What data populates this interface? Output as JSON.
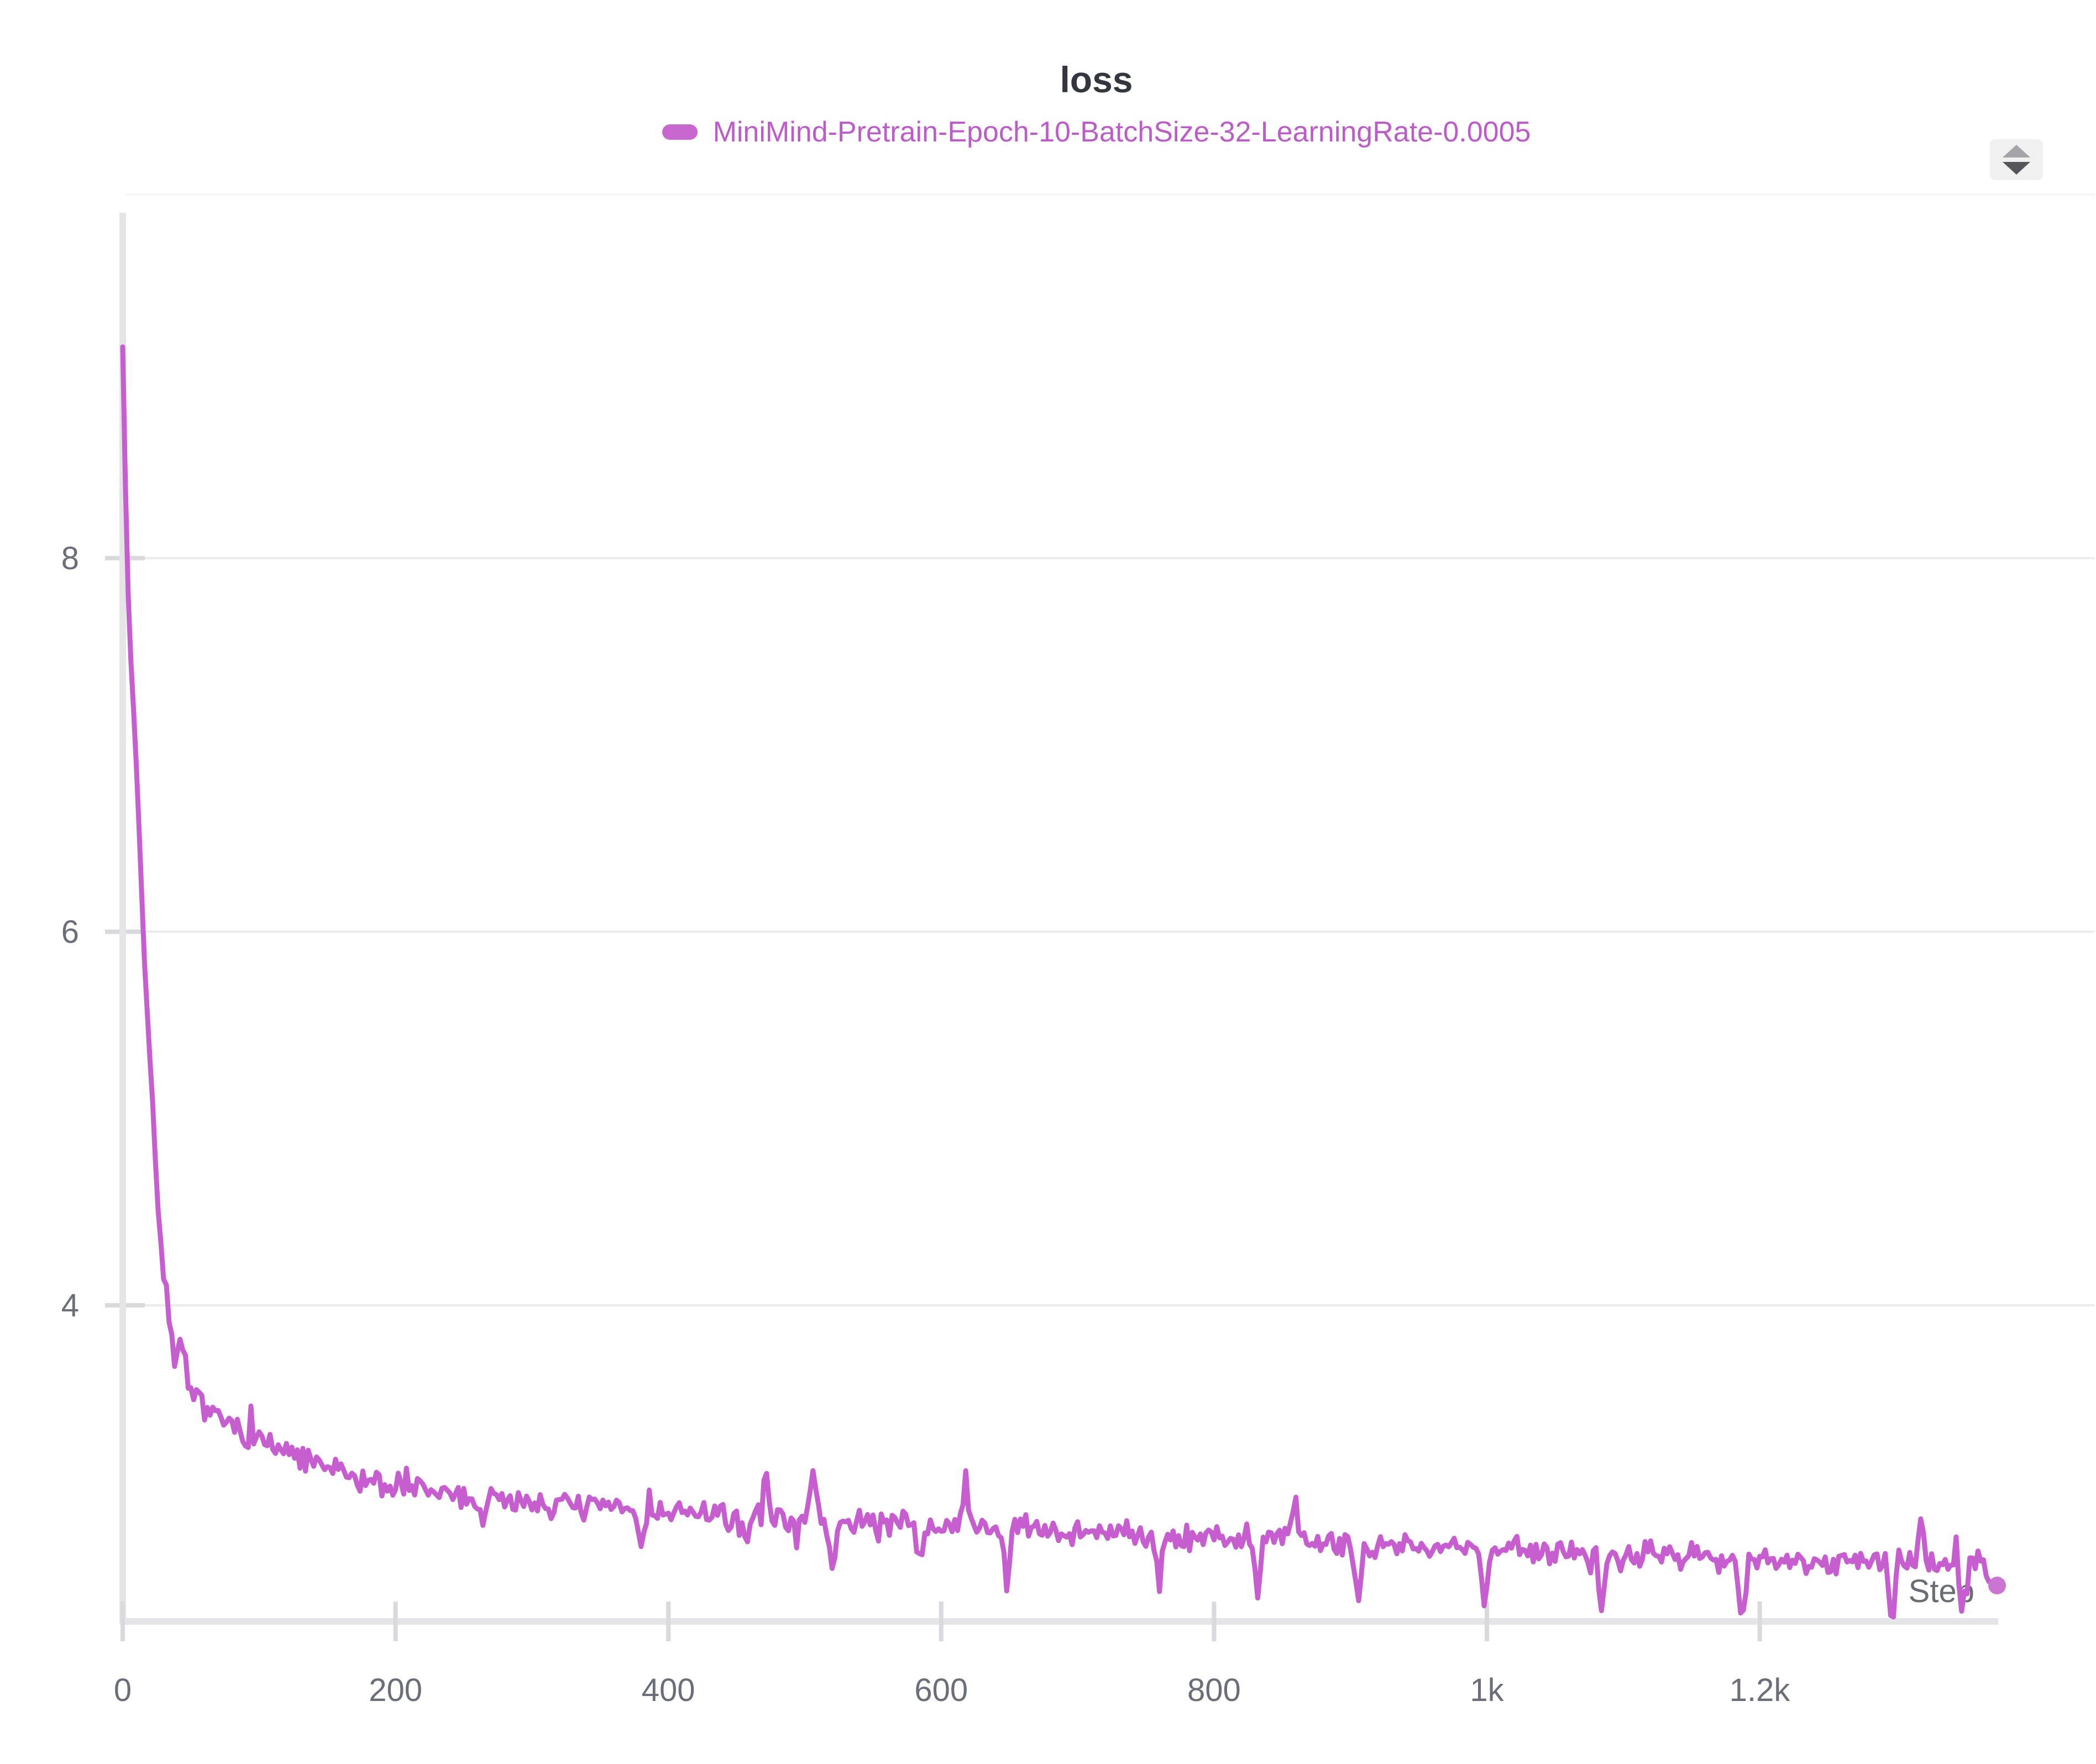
{
  "title": {
    "text": "loss"
  },
  "legend": {
    "series_label": "MiniMind-Pretrain-Epoch-10-BatchSize-32-LearningRate-0.0005",
    "marker_color": "#c767cf",
    "text_color": "#bb5cc9"
  },
  "controls": {
    "sorter_icon": "up-down-triangles"
  },
  "colors": {
    "line": "#c65ecf",
    "end_dot": "#ca74d4",
    "grid": "#ececef",
    "axis_band": "#e5e5e8",
    "tick": "#d9d9de",
    "axis_label": "#6b6e78",
    "title": "#33363c",
    "plot_top_border": "#f4f4f6"
  },
  "chart_data": {
    "type": "line",
    "title": "loss",
    "xlabel": "Step",
    "ylabel": "",
    "grid": true,
    "legend_position": "top-center",
    "x_range": [
      0,
      1427
    ],
    "y_range": [
      2.31,
      9.84
    ],
    "x_ticks": [
      {
        "value": 0,
        "label": "0"
      },
      {
        "value": 200,
        "label": "200"
      },
      {
        "value": 400,
        "label": "400"
      },
      {
        "value": 600,
        "label": "600"
      },
      {
        "value": 800,
        "label": "800"
      },
      {
        "value": 1000,
        "label": "1k"
      },
      {
        "value": 1200,
        "label": "1.2k"
      }
    ],
    "y_ticks": [
      {
        "value": 8,
        "label": "8"
      },
      {
        "value": 6,
        "label": "6"
      },
      {
        "value": 4,
        "label": "4"
      }
    ],
    "series": [
      {
        "name": "MiniMind-Pretrain-Epoch-10-BatchSize-32-LearningRate-0.0005",
        "color": "#c65ecf",
        "sample_interval": 2,
        "anchors": [
          [
            0,
            9.15
          ],
          [
            3,
            8.0
          ],
          [
            6,
            7.45
          ],
          [
            10,
            6.9
          ],
          [
            15,
            6.0
          ],
          [
            20,
            5.3
          ],
          [
            25,
            4.65
          ],
          [
            30,
            4.15
          ],
          [
            35,
            3.95
          ],
          [
            40,
            3.75
          ],
          [
            45,
            3.65
          ],
          [
            50,
            3.55
          ],
          [
            60,
            3.47
          ],
          [
            70,
            3.4
          ],
          [
            85,
            3.33
          ],
          [
            100,
            3.28
          ],
          [
            130,
            3.18
          ],
          [
            160,
            3.1
          ],
          [
            200,
            3.03
          ],
          [
            250,
            2.98
          ],
          [
            300,
            2.95
          ],
          [
            350,
            2.92
          ],
          [
            400,
            2.89
          ],
          [
            450,
            2.87
          ],
          [
            500,
            2.85
          ],
          [
            550,
            2.84
          ],
          [
            600,
            2.82
          ],
          [
            650,
            2.81
          ],
          [
            700,
            2.79
          ],
          [
            750,
            2.78
          ],
          [
            800,
            2.76
          ],
          [
            850,
            2.74
          ],
          [
            900,
            2.72
          ],
          [
            950,
            2.71
          ],
          [
            1000,
            2.7
          ],
          [
            1050,
            2.68
          ],
          [
            1100,
            2.67
          ],
          [
            1150,
            2.66
          ],
          [
            1200,
            2.64
          ],
          [
            1250,
            2.63
          ],
          [
            1300,
            2.62
          ],
          [
            1340,
            2.6
          ],
          [
            1360,
            2.63
          ],
          [
            1370,
            2.55
          ],
          [
            1374,
            2.5
          ]
        ],
        "noise": {
          "seed": 7,
          "base_amp": 0.085,
          "mid_amp": 0.1,
          "heavy_tail_prob": 0.07,
          "heavy_tail_gain": 2.2
        },
        "spikes": [
          {
            "step": 38,
            "delta": -0.15
          },
          {
            "step": 44,
            "delta": 0.15
          },
          {
            "step": 48,
            "delta": -0.12
          },
          {
            "step": 264,
            "delta": -0.18
          },
          {
            "step": 380,
            "delta": -0.2
          },
          {
            "step": 455,
            "delta": -0.22
          },
          {
            "step": 472,
            "delta": 0.22
          },
          {
            "step": 506,
            "delta": 0.25
          },
          {
            "step": 520,
            "delta": -0.28
          },
          {
            "step": 585,
            "delta": -0.25
          },
          {
            "step": 618,
            "delta": 0.22
          },
          {
            "step": 648,
            "delta": -0.3
          },
          {
            "step": 760,
            "delta": -0.26
          },
          {
            "step": 832,
            "delta": -0.28
          },
          {
            "step": 860,
            "delta": 0.2
          },
          {
            "step": 905,
            "delta": -0.3
          },
          {
            "step": 998,
            "delta": -0.27
          },
          {
            "step": 1085,
            "delta": -0.3
          },
          {
            "step": 1187,
            "delta": -0.32
          },
          {
            "step": 1297,
            "delta": -0.3
          },
          {
            "step": 1318,
            "delta": 0.24
          },
          {
            "step": 1349,
            "delta": -0.26
          }
        ],
        "end_point": {
          "step": 1374,
          "value": 2.5
        }
      }
    ]
  }
}
